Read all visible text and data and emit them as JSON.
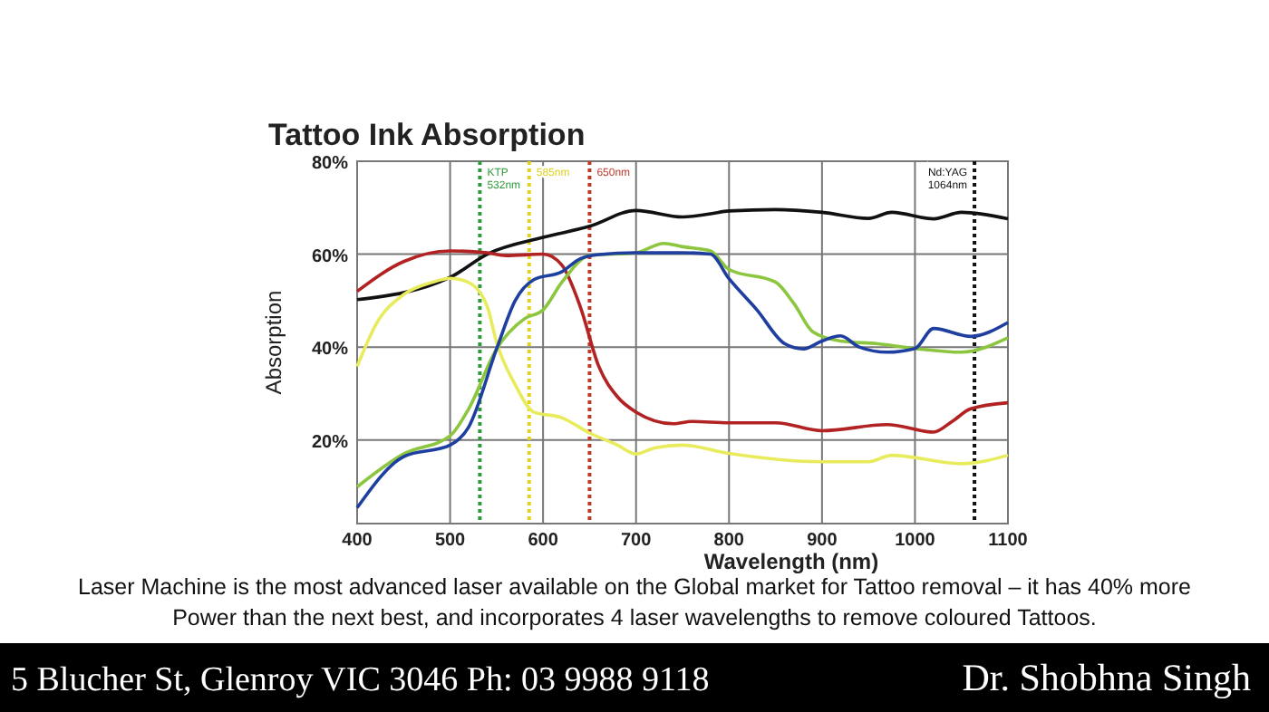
{
  "chart_data": {
    "type": "line",
    "title": "Tattoo Ink Absorption",
    "xlabel": "Wavelength (nm)",
    "ylabel": "Absorption",
    "xlim": [
      400,
      1100
    ],
    "xticks": [
      400,
      500,
      600,
      700,
      800,
      900,
      1000,
      1100
    ],
    "ylim": [
      2,
      80
    ],
    "yticks": [
      {
        "value": 20,
        "label": "20%"
      },
      {
        "value": 40,
        "label": "40%"
      },
      {
        "value": 60,
        "label": "60%"
      },
      {
        "value": 80,
        "label": "80%"
      }
    ],
    "grid": true,
    "marker": "none",
    "line_style": "solid",
    "series": [
      {
        "color": "#111111",
        "x": [
          400,
          500,
          540,
          600,
          650,
          700,
          750,
          780,
          800,
          850,
          900,
          950,
          975,
          1020,
          1050,
          1100
        ],
        "values": [
          50.2,
          55,
          60,
          63.6,
          66,
          69.4,
          68,
          68.7,
          69.3,
          69.6,
          69,
          67.7,
          69,
          67.6,
          69,
          67.6
        ]
      },
      {
        "color": "#b22222",
        "x": [
          400,
          450,
          500,
          540,
          560,
          600,
          620,
          640,
          660,
          680,
          700,
          740,
          760,
          800,
          850,
          900,
          970,
          1020,
          1040,
          1060,
          1100
        ],
        "values": [
          52,
          58.4,
          60.7,
          60.3,
          59.7,
          60,
          57.7,
          48.7,
          35.8,
          29.3,
          26,
          23.5,
          24,
          23.7,
          23.7,
          22,
          23.3,
          21.7,
          24,
          26.7,
          28
        ]
      },
      {
        "color": "#e8ec5c",
        "x": [
          400,
          420,
          450,
          480,
          500,
          520,
          540,
          550,
          570,
          590,
          620,
          650,
          680,
          700,
          720,
          750,
          800,
          900,
          950,
          975,
          1050,
          1100
        ],
        "values": [
          35.8,
          44.8,
          51.3,
          53.9,
          54.8,
          53.9,
          48.7,
          41,
          31.9,
          26,
          24.8,
          21.5,
          18.9,
          17,
          18.3,
          18.9,
          17.1,
          15.3,
          15.3,
          16.7,
          14.9,
          16.7
        ]
      },
      {
        "color": "#8cc63f",
        "x": [
          400,
          450,
          500,
          520,
          550,
          580,
          600,
          620,
          650,
          700,
          730,
          750,
          780,
          800,
          850,
          870,
          890,
          920,
          960,
          1000,
          1050,
          1100
        ],
        "values": [
          9.9,
          17,
          20.9,
          26.7,
          39.6,
          46.1,
          48,
          53.9,
          59.7,
          60.3,
          62.3,
          61.6,
          60.7,
          56.7,
          54,
          49.3,
          43.3,
          41.3,
          40.7,
          39.7,
          38.9,
          42
        ]
      },
      {
        "color": "#1f3fa0",
        "x": [
          400,
          450,
          500,
          520,
          550,
          570,
          590,
          620,
          640,
          660,
          700,
          750,
          780,
          800,
          830,
          860,
          880,
          900,
          920,
          940,
          970,
          1000,
          1020,
          1060,
          1100
        ],
        "values": [
          5.4,
          16.4,
          18.9,
          22.8,
          39.6,
          50,
          54.5,
          56.2,
          59,
          59.9,
          60.3,
          60.3,
          60,
          54.7,
          48,
          40.7,
          39.6,
          41.3,
          42.4,
          40,
          38.9,
          39.7,
          44,
          42.3,
          45.3
        ]
      }
    ],
    "ref_lines": [
      {
        "axis": "x",
        "value": 532,
        "label": "KTP 532nm",
        "color": "#2e9a3a",
        "line_style": "dotted"
      },
      {
        "axis": "x",
        "value": 585,
        "label": "585nm",
        "color": "#e0d020",
        "line_style": "dotted"
      },
      {
        "axis": "x",
        "value": 650,
        "label": "650nm",
        "color": "#c0392b",
        "line_style": "dotted"
      },
      {
        "axis": "x",
        "value": 1064,
        "label": "Nd:YAG 1064nm",
        "color": "#111111",
        "line_style": "dotted"
      }
    ],
    "annotations": [
      "Laser Machine is the most advanced laser available on the Global market for Tattoo removal – it has 40% more Power than the next best, and incorporates 4 laser wavelengths to remove coloured Tattoos.",
      "5 Blucher St, Glenroy VIC 3046  Ph: 03 9988 9118",
      "Dr. Shobhna Singh"
    ]
  }
}
